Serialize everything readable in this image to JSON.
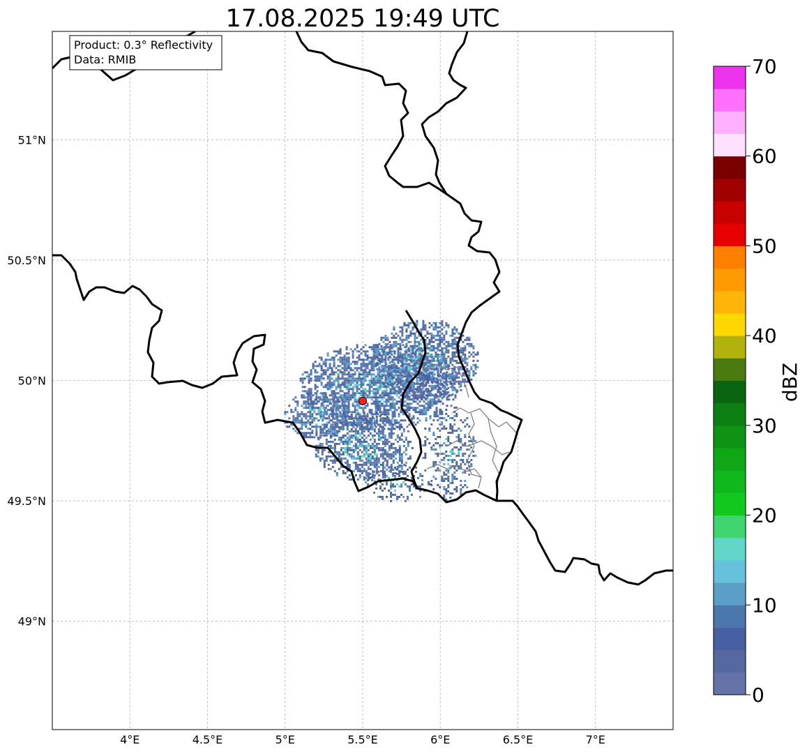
{
  "title": "17.08.2025 19:49 UTC",
  "info_box": {
    "product": "Product: 0.3° Reflectivity",
    "source": "Data: RMIB"
  },
  "map": {
    "lon_range": [
      3.5,
      7.5
    ],
    "lat_range": [
      48.55,
      51.45
    ],
    "lon_ticks": [
      {
        "value": 4.0,
        "label": "4°E"
      },
      {
        "value": 4.5,
        "label": "4.5°E"
      },
      {
        "value": 5.0,
        "label": "5°E"
      },
      {
        "value": 5.5,
        "label": "5.5°E"
      },
      {
        "value": 6.0,
        "label": "6°E"
      },
      {
        "value": 6.5,
        "label": "6.5°E"
      },
      {
        "value": 7.0,
        "label": "7°E"
      }
    ],
    "lat_ticks": [
      {
        "value": 51.0,
        "label": "51°N"
      },
      {
        "value": 50.5,
        "label": "50.5°N"
      },
      {
        "value": 50.0,
        "label": "50°N"
      },
      {
        "value": 49.5,
        "label": "49.5°N"
      },
      {
        "value": 49.0,
        "label": "49°N"
      }
    ],
    "gridlines": true,
    "radar_site": {
      "lon": 5.5,
      "lat": 49.915,
      "color": "#ff2020"
    }
  },
  "colorbar": {
    "label": "dBZ",
    "min": 0,
    "max": 70,
    "step": 2.5,
    "tick_values": [
      0,
      10,
      20,
      30,
      40,
      50,
      60,
      70
    ],
    "colors": [
      "#6673a8",
      "#55689f",
      "#4660a2",
      "#4b77ad",
      "#5b9ec8",
      "#66c1dd",
      "#62d6c8",
      "#40d472",
      "#12c81e",
      "#10b81b",
      "#0fa716",
      "#0e9314",
      "#0c7f12",
      "#0a6410",
      "#4a7a10",
      "#b2b30a",
      "#ffd700",
      "#ffb40a",
      "#ff9a00",
      "#ff7f00",
      "#e60000",
      "#c80000",
      "#a00000",
      "#7a0000",
      "#ffe0ff",
      "#ffb0ff",
      "#ff70ff",
      "#ee33ee"
    ]
  },
  "echo_clusters": [
    {
      "lon": 5.6,
      "lat": 49.98,
      "rlon": 0.52,
      "rlat": 0.18,
      "density": 0.78
    },
    {
      "lon": 5.9,
      "lat": 50.09,
      "rlon": 0.34,
      "rlat": 0.17,
      "density": 0.72
    },
    {
      "lon": 5.5,
      "lat": 49.73,
      "rlon": 0.32,
      "rlat": 0.15,
      "density": 0.7
    },
    {
      "lon": 5.2,
      "lat": 49.86,
      "rlon": 0.22,
      "rlat": 0.1,
      "density": 0.62
    },
    {
      "lon": 6.05,
      "lat": 49.7,
      "rlon": 0.18,
      "rlat": 0.2,
      "density": 0.35
    },
    {
      "lon": 5.72,
      "lat": 49.58,
      "rlon": 0.22,
      "rlat": 0.08,
      "density": 0.4
    }
  ]
}
